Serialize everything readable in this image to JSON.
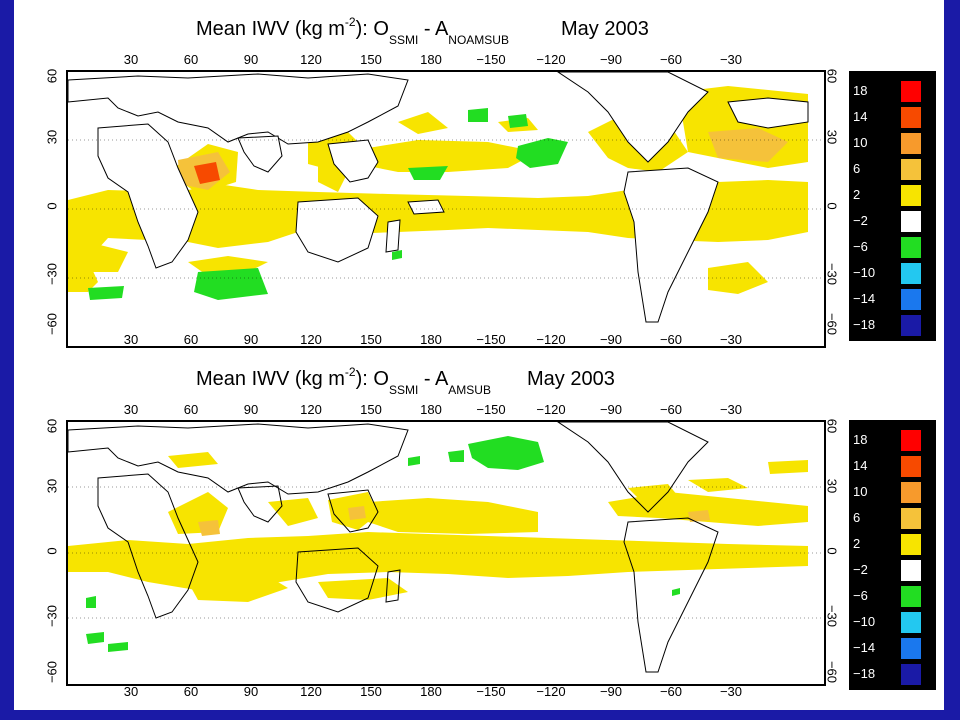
{
  "panels": [
    {
      "title": {
        "prefix": "Mean IWV (kg m",
        "exp": "-2",
        "mid": "):  O",
        "sub1": "SSMI",
        "dash": " - A",
        "sub2": "NOAMSUB",
        "date": "May 2003"
      }
    },
    {
      "title": {
        "prefix": "Mean IWV (kg m",
        "exp": "-2",
        "mid": "):  O",
        "sub1": "SSMI",
        "dash": " - A",
        "sub2": "AMSUB",
        "date": "May 2003"
      }
    }
  ],
  "lon_ticks": [
    "30",
    "60",
    "90",
    "120",
    "150",
    "180",
    "−150",
    "−120",
    "−90",
    "−60",
    "−30"
  ],
  "lat_ticks_left": [
    "60",
    "30",
    "0",
    "−30",
    "−60"
  ],
  "lat_ticks_right": [
    "60",
    "30",
    "0",
    "−30",
    "−60"
  ],
  "colorbar": {
    "labels": [
      "18",
      "14",
      "10",
      "6",
      "2",
      "−2",
      "−6",
      "−10",
      "−14",
      "−18"
    ],
    "colors": [
      "#ff0000",
      "#f74a00",
      "#f79a2c",
      "#f5c23a",
      "#f7e400",
      "#ffffff",
      "#22dd22",
      "#23c8f0",
      "#1a78ee",
      "#1a1aa6"
    ]
  },
  "colors": {
    "frame": "#1a1aa6",
    "land": "#ffffff",
    "coast": "#000000"
  }
}
